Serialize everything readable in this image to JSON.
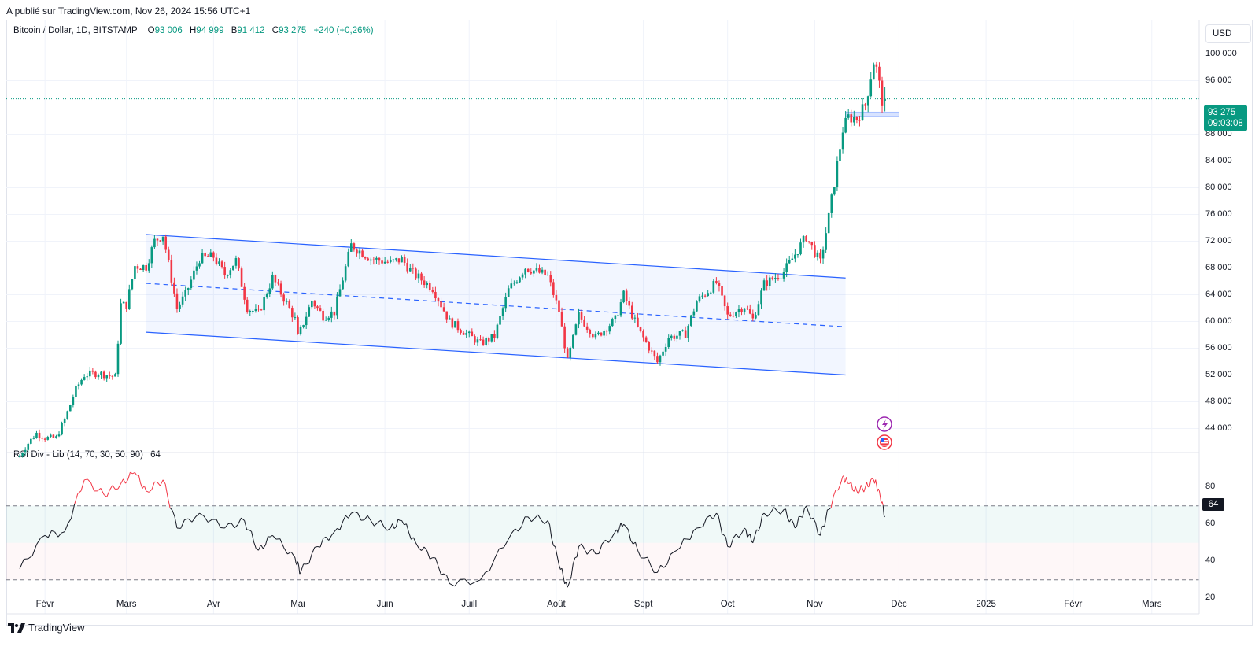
{
  "header": {
    "published": "A publié sur TradingView.com, Nov 26, 2024 15:56 UTC+1"
  },
  "legend": {
    "symbol": "Bitcoin / Dollar, 1D, BITSTAMP",
    "o_label": "O",
    "o_value": "93 006",
    "h_label": "H",
    "h_value": "94 999",
    "l_label": "B",
    "l_value": "91 412",
    "c_label": "C",
    "c_value": "93 275",
    "change": "+240 (+0,26%)"
  },
  "currency": "USD",
  "price_tag": {
    "price": "93 275",
    "countdown": "09:03:08"
  },
  "rsi": {
    "legend": "RSI Div - Lib (14, 70, 30, 50, 90)",
    "value": "64",
    "tag": "64"
  },
  "price_axis": [
    "100 000",
    "96 000",
    "88 000",
    "84 000",
    "80 000",
    "76 000",
    "72 000",
    "68 000",
    "64 000",
    "60 000",
    "56 000",
    "52 000",
    "48 000",
    "44 000"
  ],
  "rsi_axis": [
    "80",
    "60",
    "40",
    "20"
  ],
  "time_axis": [
    "Févr",
    "Mars",
    "Avr",
    "Mai",
    "Juin",
    "Juill",
    "Août",
    "Sept",
    "Oct",
    "Nov",
    "Déc",
    "2025",
    "Févr",
    "Mars"
  ],
  "brand": "TradingView",
  "colors": {
    "up": "#089981",
    "down": "#f23645",
    "channel": "#2962ff",
    "rsi_line": "#131722",
    "rsi_over": "#f23645"
  },
  "chart_data": {
    "type": "candlestick",
    "symbol": "Bitcoin / Dollar, 1D, BITSTAMP",
    "close_path": [
      [
        "2024-01-23",
        39900
      ],
      [
        "2024-01-26",
        41800
      ],
      [
        "2024-01-29",
        43300
      ],
      [
        "2024-02-01",
        42600
      ],
      [
        "2024-02-05",
        42600
      ],
      [
        "2024-02-08",
        45300
      ],
      [
        "2024-02-12",
        49900
      ],
      [
        "2024-02-15",
        52000
      ],
      [
        "2024-02-20",
        52300
      ],
      [
        "2024-02-26",
        51700
      ],
      [
        "2024-02-28",
        62500
      ],
      [
        "2024-03-01",
        62400
      ],
      [
        "2024-03-04",
        68300
      ],
      [
        "2024-03-08",
        68200
      ],
      [
        "2024-03-11",
        72000
      ],
      [
        "2024-03-14",
        73000
      ],
      [
        "2024-03-19",
        62000
      ],
      [
        "2024-03-22",
        64000
      ],
      [
        "2024-03-27",
        69400
      ],
      [
        "2024-04-01",
        69700
      ],
      [
        "2024-04-05",
        67000
      ],
      [
        "2024-04-09",
        69100
      ],
      [
        "2024-04-13",
        62000
      ],
      [
        "2024-04-17",
        61200
      ],
      [
        "2024-04-22",
        66500
      ],
      [
        "2024-04-26",
        63500
      ],
      [
        "2024-04-30",
        60300
      ],
      [
        "2024-05-01",
        57600
      ],
      [
        "2024-05-06",
        63100
      ],
      [
        "2024-05-10",
        60800
      ],
      [
        "2024-05-14",
        61400
      ],
      [
        "2024-05-20",
        71400
      ],
      [
        "2024-05-27",
        69400
      ],
      [
        "2024-06-03",
        68800
      ],
      [
        "2024-06-07",
        69300
      ],
      [
        "2024-06-11",
        67200
      ],
      [
        "2024-06-18",
        65000
      ],
      [
        "2024-06-24",
        60000
      ],
      [
        "2024-07-05",
        56700
      ],
      [
        "2024-07-10",
        57800
      ],
      [
        "2024-07-15",
        64700
      ],
      [
        "2024-07-21",
        68100
      ],
      [
        "2024-07-29",
        66800
      ],
      [
        "2024-08-02",
        61500
      ],
      [
        "2024-08-05",
        54000
      ],
      [
        "2024-08-09",
        60900
      ],
      [
        "2024-08-15",
        57600
      ],
      [
        "2024-08-22",
        60300
      ],
      [
        "2024-08-25",
        64000
      ],
      [
        "2024-08-30",
        59000
      ],
      [
        "2024-09-06",
        53900
      ],
      [
        "2024-09-10",
        57600
      ],
      [
        "2024-09-16",
        58200
      ],
      [
        "2024-09-20",
        63000
      ],
      [
        "2024-09-27",
        65800
      ],
      [
        "2024-10-01",
        60800
      ],
      [
        "2024-10-07",
        62300
      ],
      [
        "2024-10-10",
        60300
      ],
      [
        "2024-10-14",
        65600
      ],
      [
        "2024-10-21",
        67400
      ],
      [
        "2024-10-29",
        72700
      ],
      [
        "2024-11-03",
        68800
      ],
      [
        "2024-11-06",
        75600
      ],
      [
        "2024-11-11",
        88700
      ],
      [
        "2024-11-13",
        90500
      ],
      [
        "2024-11-16",
        90400
      ],
      [
        "2024-11-19",
        92300
      ],
      [
        "2024-11-22",
        98900
      ],
      [
        "2024-11-23",
        97700
      ],
      [
        "2024-11-25",
        93000
      ],
      [
        "2024-11-26",
        93275
      ]
    ],
    "last_candle": {
      "open": 93006,
      "high": 94999,
      "low": 91412,
      "close": 93275
    },
    "channel": {
      "upper": [
        [
          "2024-03-08",
          73000
        ],
        [
          "2024-11-12",
          66500
        ]
      ],
      "middle": [
        [
          "2024-03-08",
          65700
        ],
        [
          "2024-11-12",
          59200
        ]
      ],
      "lower": [
        [
          "2024-03-08",
          58400
        ],
        [
          "2024-11-12",
          52000
        ]
      ]
    },
    "support_zone": {
      "from": "2024-11-12",
      "to": "2024-12-01",
      "low": 90600,
      "high": 91300
    },
    "rsi_series": [
      [
        "2024-01-23",
        36
      ],
      [
        "2024-02-01",
        54
      ],
      [
        "2024-02-08",
        56
      ],
      [
        "2024-02-15",
        84
      ],
      [
        "2024-02-22",
        76
      ],
      [
        "2024-02-28",
        82
      ],
      [
        "2024-03-04",
        88
      ],
      [
        "2024-03-08",
        78
      ],
      [
        "2024-03-14",
        84
      ],
      [
        "2024-03-19",
        58
      ],
      [
        "2024-03-27",
        66
      ],
      [
        "2024-04-05",
        58
      ],
      [
        "2024-04-12",
        62
      ],
      [
        "2024-04-17",
        46
      ],
      [
        "2024-04-22",
        54
      ],
      [
        "2024-04-30",
        42
      ],
      [
        "2024-05-02",
        34
      ],
      [
        "2024-05-08",
        48
      ],
      [
        "2024-05-14",
        56
      ],
      [
        "2024-05-20",
        66
      ],
      [
        "2024-05-27",
        62
      ],
      [
        "2024-06-03",
        58
      ],
      [
        "2024-06-07",
        62
      ],
      [
        "2024-06-12",
        50
      ],
      [
        "2024-06-18",
        42
      ],
      [
        "2024-06-24",
        28
      ],
      [
        "2024-07-05",
        30
      ],
      [
        "2024-07-15",
        52
      ],
      [
        "2024-07-22",
        64
      ],
      [
        "2024-07-29",
        62
      ],
      [
        "2024-08-02",
        38
      ],
      [
        "2024-08-05",
        26
      ],
      [
        "2024-08-09",
        48
      ],
      [
        "2024-08-15",
        44
      ],
      [
        "2024-08-22",
        56
      ],
      [
        "2024-08-25",
        60
      ],
      [
        "2024-08-30",
        46
      ],
      [
        "2024-09-06",
        34
      ],
      [
        "2024-09-13",
        46
      ],
      [
        "2024-09-20",
        58
      ],
      [
        "2024-09-27",
        66
      ],
      [
        "2024-10-01",
        48
      ],
      [
        "2024-10-07",
        58
      ],
      [
        "2024-10-10",
        50
      ],
      [
        "2024-10-14",
        66
      ],
      [
        "2024-10-21",
        68
      ],
      [
        "2024-10-25",
        58
      ],
      [
        "2024-10-29",
        70
      ],
      [
        "2024-11-03",
        54
      ],
      [
        "2024-11-06",
        68
      ],
      [
        "2024-11-11",
        86
      ],
      [
        "2024-11-13",
        82
      ],
      [
        "2024-11-16",
        78
      ],
      [
        "2024-11-19",
        80
      ],
      [
        "2024-11-22",
        84
      ],
      [
        "2024-11-24",
        78
      ],
      [
        "2024-11-26",
        64
      ]
    ],
    "rsi_levels": {
      "upper": 70,
      "middle": 50,
      "lower": 30
    },
    "price_range": [
      41000,
      101000
    ],
    "rsi_range": [
      18,
      92
    ]
  }
}
